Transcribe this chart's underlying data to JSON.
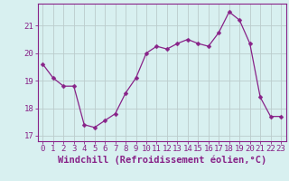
{
  "x": [
    0,
    1,
    2,
    3,
    4,
    5,
    6,
    7,
    8,
    9,
    10,
    11,
    12,
    13,
    14,
    15,
    16,
    17,
    18,
    19,
    20,
    21,
    22,
    23
  ],
  "y": [
    19.6,
    19.1,
    18.8,
    18.8,
    17.4,
    17.3,
    17.55,
    17.8,
    18.55,
    19.1,
    20.0,
    20.25,
    20.15,
    20.35,
    20.5,
    20.35,
    20.25,
    20.75,
    21.5,
    21.2,
    20.35,
    18.4,
    17.7,
    17.7
  ],
  "line_color": "#882288",
  "marker": "D",
  "marker_size": 2.5,
  "bg_color": "#d8f0f0",
  "grid_color": "#bbcccc",
  "xlabel": "Windchill (Refroidissement éolien,°C)",
  "xlabel_fontsize": 7.5,
  "ylim": [
    16.8,
    21.8
  ],
  "xlim": [
    -0.5,
    23.5
  ],
  "yticks": [
    17,
    18,
    19,
    20,
    21
  ],
  "xtick_labels": [
    "0",
    "1",
    "2",
    "3",
    "4",
    "5",
    "6",
    "7",
    "8",
    "9",
    "10",
    "11",
    "12",
    "13",
    "14",
    "15",
    "16",
    "17",
    "18",
    "19",
    "20",
    "21",
    "22",
    "23"
  ],
  "tick_fontsize": 6.5,
  "purple": "#882288"
}
